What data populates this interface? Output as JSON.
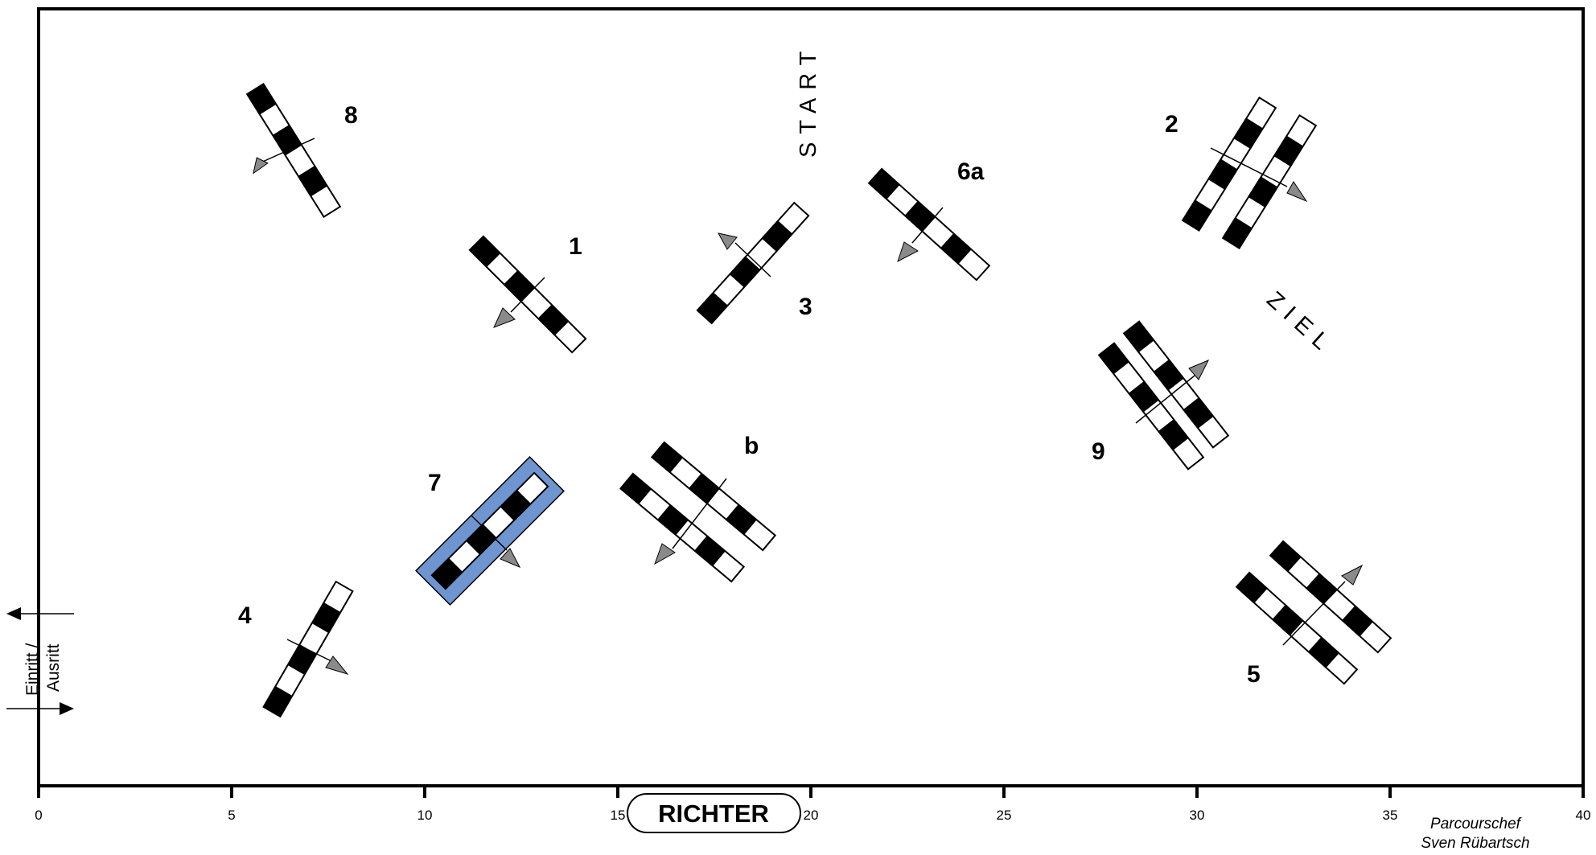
{
  "course": {
    "start_label": "START",
    "finish_label": "ZIEL",
    "judge_label": "RICHTER",
    "entry_label_line1": "Einritt /",
    "entry_label_line2": "Ausritt",
    "designer_line1": "Parcourschef",
    "designer_line2": "Sven Rübartsch",
    "scale_ticks": [
      "0",
      "5",
      "10",
      "15",
      "20",
      "25",
      "30",
      "35",
      "40"
    ],
    "obstacles": [
      {
        "id": "1",
        "label": "1",
        "type": "vertical"
      },
      {
        "id": "2",
        "label": "2",
        "type": "oxer"
      },
      {
        "id": "3",
        "label": "3",
        "type": "vertical"
      },
      {
        "id": "4",
        "label": "4",
        "type": "vertical"
      },
      {
        "id": "5",
        "label": "5",
        "type": "oxer"
      },
      {
        "id": "6a",
        "label": "6a",
        "type": "vertical"
      },
      {
        "id": "6b",
        "label": "b",
        "type": "oxer"
      },
      {
        "id": "7",
        "label": "7",
        "type": "water-vertical"
      },
      {
        "id": "8",
        "label": "8",
        "type": "vertical"
      },
      {
        "id": "9",
        "label": "9",
        "type": "oxer"
      }
    ]
  }
}
